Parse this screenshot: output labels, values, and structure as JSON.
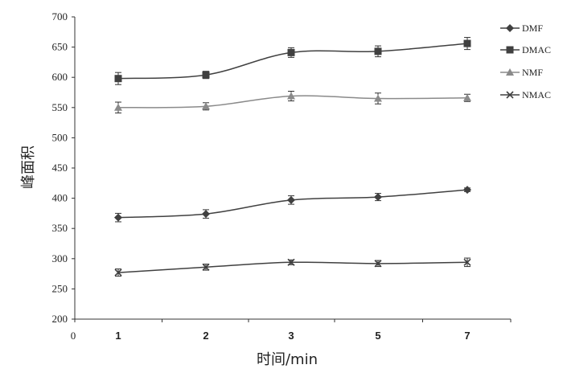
{
  "chart_data": {
    "type": "line",
    "title": "",
    "xlabel": "时间/min",
    "ylabel": "峰面积",
    "x_origin_label": "0",
    "categories": [
      "1",
      "2",
      "3",
      "5",
      "7"
    ],
    "ylim": [
      200,
      700
    ],
    "yticks": [
      "200",
      "250",
      "300",
      "350",
      "400",
      "450",
      "500",
      "550",
      "600",
      "650",
      "700"
    ],
    "legend_position": "top-right",
    "grid": false,
    "series": [
      {
        "name": "DMF",
        "marker": "diamond",
        "color": "#404040",
        "values": [
          368,
          374,
          397,
          402,
          414
        ],
        "errors": [
          7,
          7,
          7,
          6,
          3
        ]
      },
      {
        "name": "DMAC",
        "marker": "square",
        "color": "#404040",
        "values": [
          598,
          604,
          641,
          643,
          656
        ],
        "errors": [
          10,
          6,
          8,
          9,
          10
        ]
      },
      {
        "name": "NMF",
        "marker": "triangle",
        "color": "#8a8a8a",
        "values": [
          550,
          552,
          569,
          565,
          566
        ],
        "errors": [
          9,
          6,
          8,
          9,
          6
        ]
      },
      {
        "name": "NMAC",
        "marker": "x",
        "color": "#404040",
        "values": [
          277,
          286,
          294,
          292,
          294
        ],
        "errors": [
          6,
          5,
          4,
          5,
          7
        ]
      }
    ]
  }
}
